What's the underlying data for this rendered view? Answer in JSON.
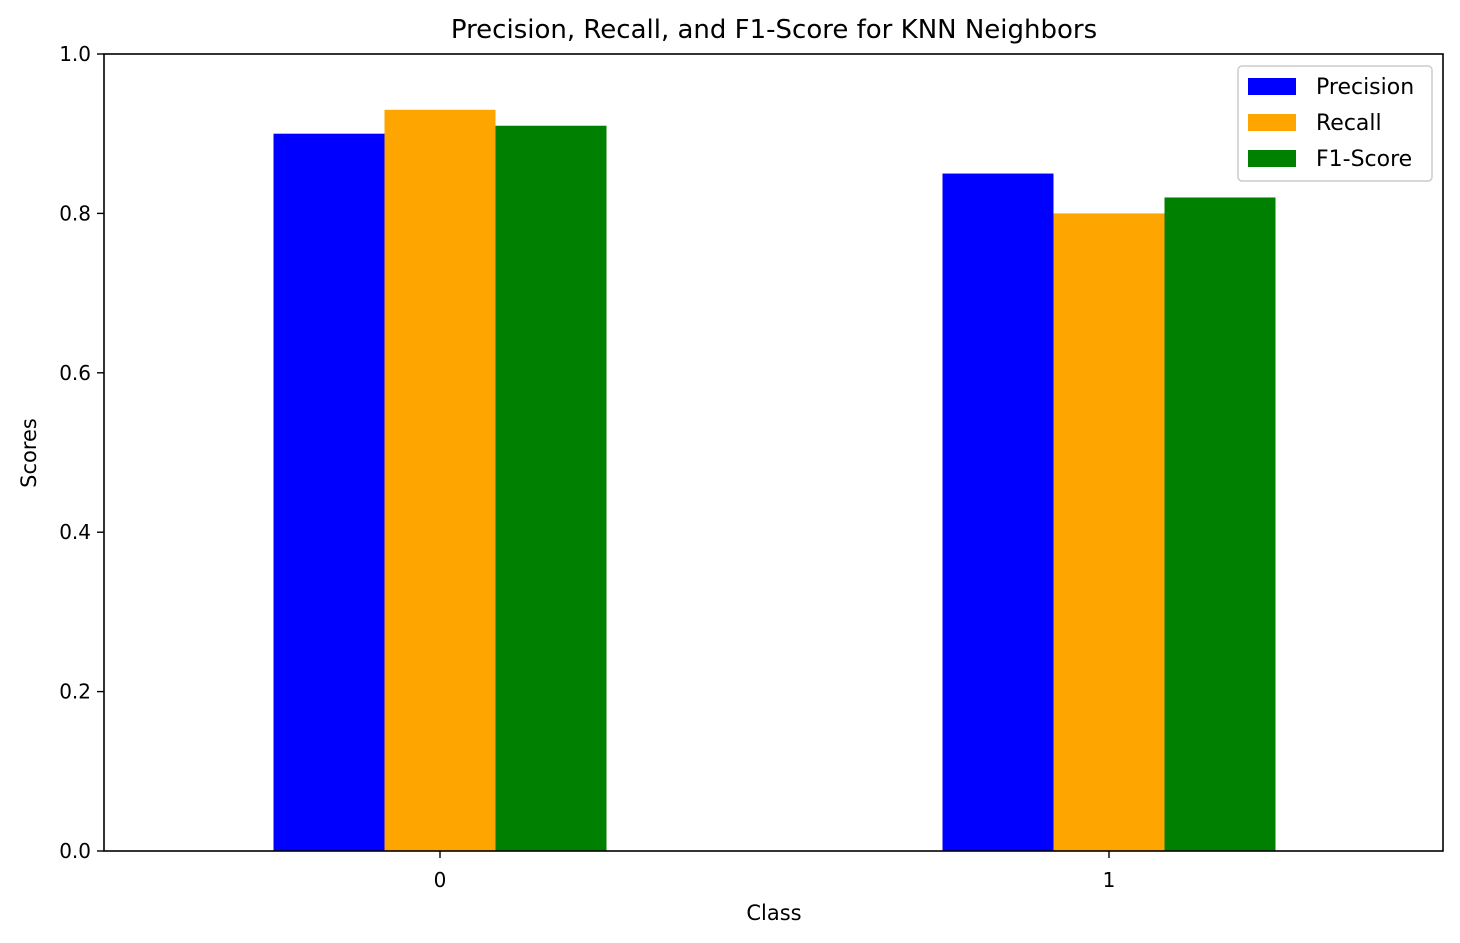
{
  "chart_data": {
    "type": "bar",
    "title": "Precision, Recall, and F1-Score for KNN Neighbors",
    "xlabel": "Class",
    "ylabel": "Scores",
    "categories": [
      "0",
      "1"
    ],
    "series": [
      {
        "name": "Precision",
        "color": "#0000ff",
        "values": [
          0.9,
          0.85
        ]
      },
      {
        "name": "Recall",
        "color": "#ffa500",
        "values": [
          0.93,
          0.8
        ]
      },
      {
        "name": "F1-Score",
        "color": "#008000",
        "values": [
          0.91,
          0.82
        ]
      }
    ],
    "ylim": [
      0,
      1.0
    ],
    "yticks": [
      "0.0",
      "0.2",
      "0.4",
      "0.6",
      "0.8",
      "1.0"
    ],
    "grid": false,
    "legend_position": "top-right"
  }
}
